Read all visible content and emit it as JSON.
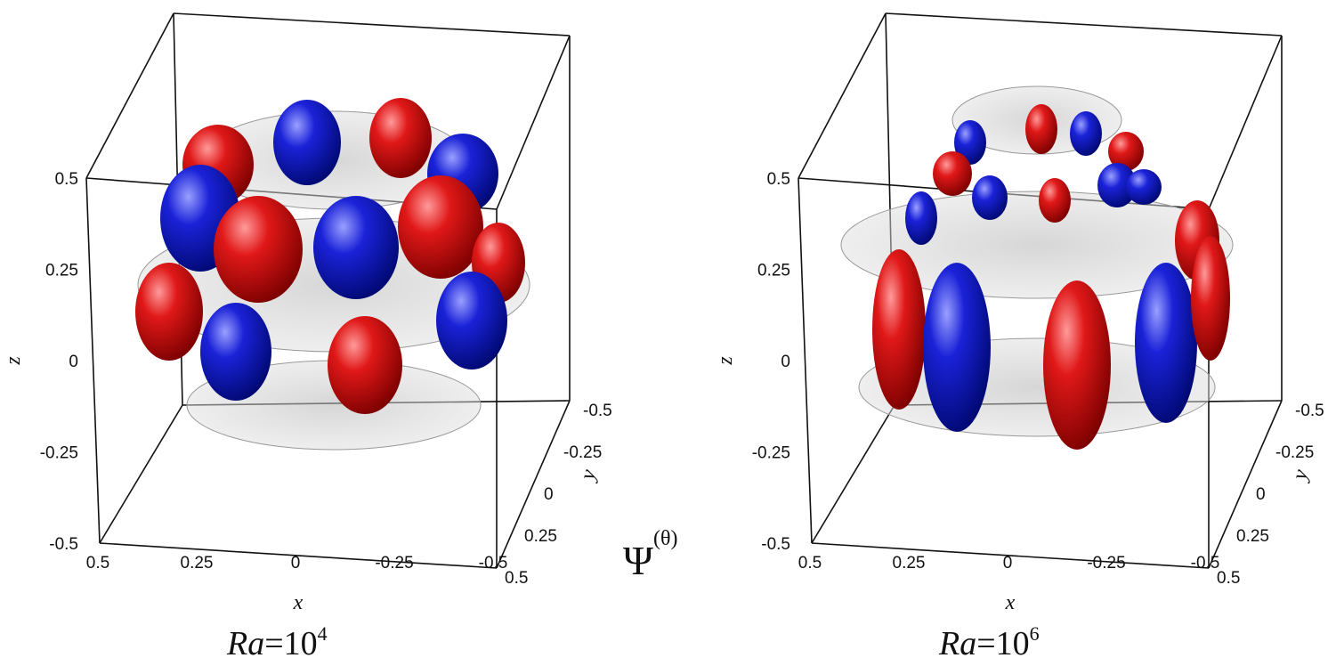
{
  "panels": [
    {
      "z_label": "z",
      "x_label": "x",
      "y_label": "y",
      "z_ticks": [
        "0.5",
        "0.25",
        "0",
        "-0.25",
        "-0.5"
      ],
      "x_ticks": [
        "0.5",
        "0.25",
        "0",
        "-0.25",
        "-0.5"
      ],
      "y_ticks": [
        "-0.5",
        "-0.25",
        "0",
        "0.25",
        "0.5"
      ],
      "caption": {
        "name": "Ra",
        "base": "=10",
        "exponent": "4"
      }
    },
    {
      "z_label": "z",
      "x_label": "x",
      "y_label": "y",
      "z_ticks": [
        "0.5",
        "0.25",
        "0",
        "-0.25",
        "-0.5"
      ],
      "x_ticks": [
        "0.5",
        "0.25",
        "0",
        "-0.25",
        "-0.5"
      ],
      "y_ticks": [
        "-0.5",
        "-0.25",
        "0",
        "0.25",
        "0.5"
      ],
      "caption": {
        "name": "Ra",
        "base": "=10",
        "exponent": "6"
      }
    }
  ],
  "center_label": {
    "symbol": "Ψ",
    "superscript": "(θ)"
  }
}
